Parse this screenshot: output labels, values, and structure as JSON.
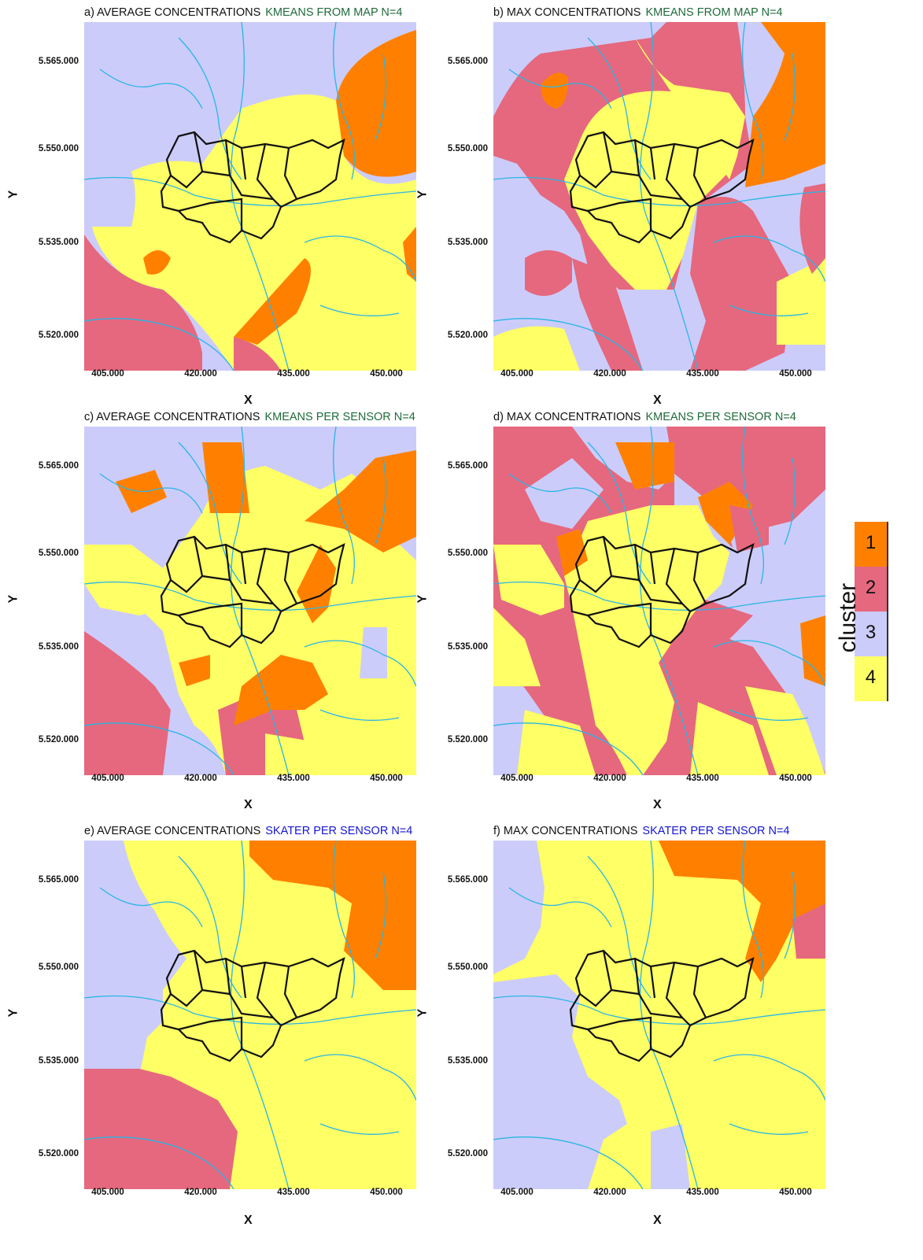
{
  "colors": {
    "cluster_1": "#ff8000",
    "cluster_2": "#e5687e",
    "cluster_3": "#ccccfa",
    "cluster_4": "#ffff66",
    "river": "#29b6e6",
    "boundary": "#111111",
    "title_method_green": "#1f6b3a",
    "title_method_blue": "#1515d6"
  },
  "axes": {
    "x_label": "X",
    "y_label": "Y",
    "x_ticks": [
      "405.000",
      "420.000",
      "435.000",
      "450.000"
    ],
    "y_ticks": [
      "5.565.000",
      "5.550.000",
      "5.535.000",
      "5.520.000"
    ]
  },
  "panels": [
    {
      "prefix": "a) AVERAGE CONCENTRATIONS",
      "method": "KMEANS FROM MAP N=4",
      "method_color": "green"
    },
    {
      "prefix": "b) MAX CONCENTRATIONS",
      "method": "KMEANS FROM MAP N=4",
      "method_color": "green"
    },
    {
      "prefix": "c) AVERAGE CONCENTRATIONS",
      "method": "KMEANS PER SENSOR N=4",
      "method_color": "green"
    },
    {
      "prefix": "d) MAX CONCENTRATIONS",
      "method": "KMEANS PER SENSOR N=4",
      "method_color": "green"
    },
    {
      "prefix": "e) AVERAGE CONCENTRATIONS",
      "method": "SKATER PER SENSOR N=4",
      "method_color": "blue"
    },
    {
      "prefix": "f) MAX CONCENTRATIONS",
      "method": "SKATER PER SENSOR N=4",
      "method_color": "blue"
    }
  ],
  "legend": {
    "title": "cluster",
    "items": [
      {
        "label": "1",
        "color": "#ff8000"
      },
      {
        "label": "2",
        "color": "#e5687e"
      },
      {
        "label": "3",
        "color": "#ccccfa"
      },
      {
        "label": "4",
        "color": "#ffff66"
      }
    ]
  }
}
